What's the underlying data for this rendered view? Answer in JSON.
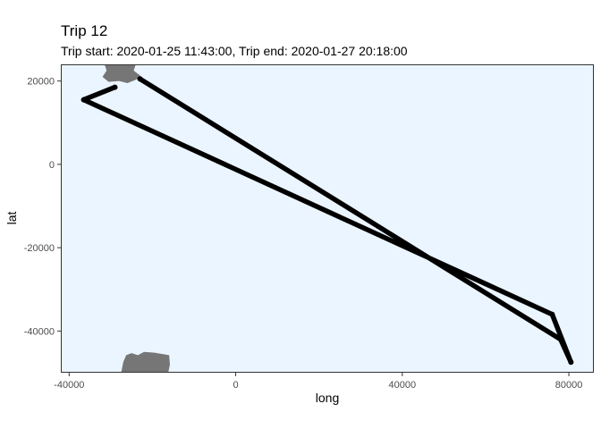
{
  "chart_data": {
    "type": "line",
    "title": "Trip 12",
    "subtitle": "Trip start: 2020-01-25 11:43:00, Trip end: 2020-01-27 20:18:00",
    "xlabel": "long",
    "ylabel": "lat",
    "xlim": [
      -42000,
      86000
    ],
    "ylim": [
      -50000,
      24000
    ],
    "x_ticks": [
      -40000,
      0,
      40000,
      80000
    ],
    "x_tick_labels": [
      "-40000",
      "0",
      "40000",
      "80000"
    ],
    "y_ticks": [
      -40000,
      -20000,
      0,
      20000
    ],
    "y_tick_labels": [
      "-40000",
      "-20000",
      "0",
      "20000"
    ],
    "grid": false,
    "series": [
      {
        "x": [
          -23000,
          78000,
          80500,
          76000,
          -36500,
          -29000
        ],
        "y": [
          20500,
          -42000,
          -47500,
          -36000,
          15500,
          18500
        ]
      }
    ],
    "land_masses": [
      {
        "points": [
          [
            -31500,
            24000
          ],
          [
            -31000,
            22500
          ],
          [
            -32000,
            21000
          ],
          [
            -30500,
            19800
          ],
          [
            -28000,
            20000
          ],
          [
            -26000,
            19500
          ],
          [
            -24000,
            20300
          ],
          [
            -22800,
            21200
          ],
          [
            -24500,
            22500
          ],
          [
            -24000,
            24000
          ]
        ]
      },
      {
        "points": [
          [
            -27500,
            -50000
          ],
          [
            -27000,
            -47500
          ],
          [
            -26300,
            -45800
          ],
          [
            -25000,
            -45300
          ],
          [
            -23500,
            -45800
          ],
          [
            -22000,
            -45000
          ],
          [
            -19500,
            -45200
          ],
          [
            -16000,
            -45800
          ],
          [
            -15800,
            -48000
          ],
          [
            -16200,
            -50000
          ]
        ]
      }
    ],
    "colors": {
      "panel_background": "#ebf5ff",
      "panel_border": "#333333",
      "track": "#000000",
      "land": "#767676"
    }
  }
}
